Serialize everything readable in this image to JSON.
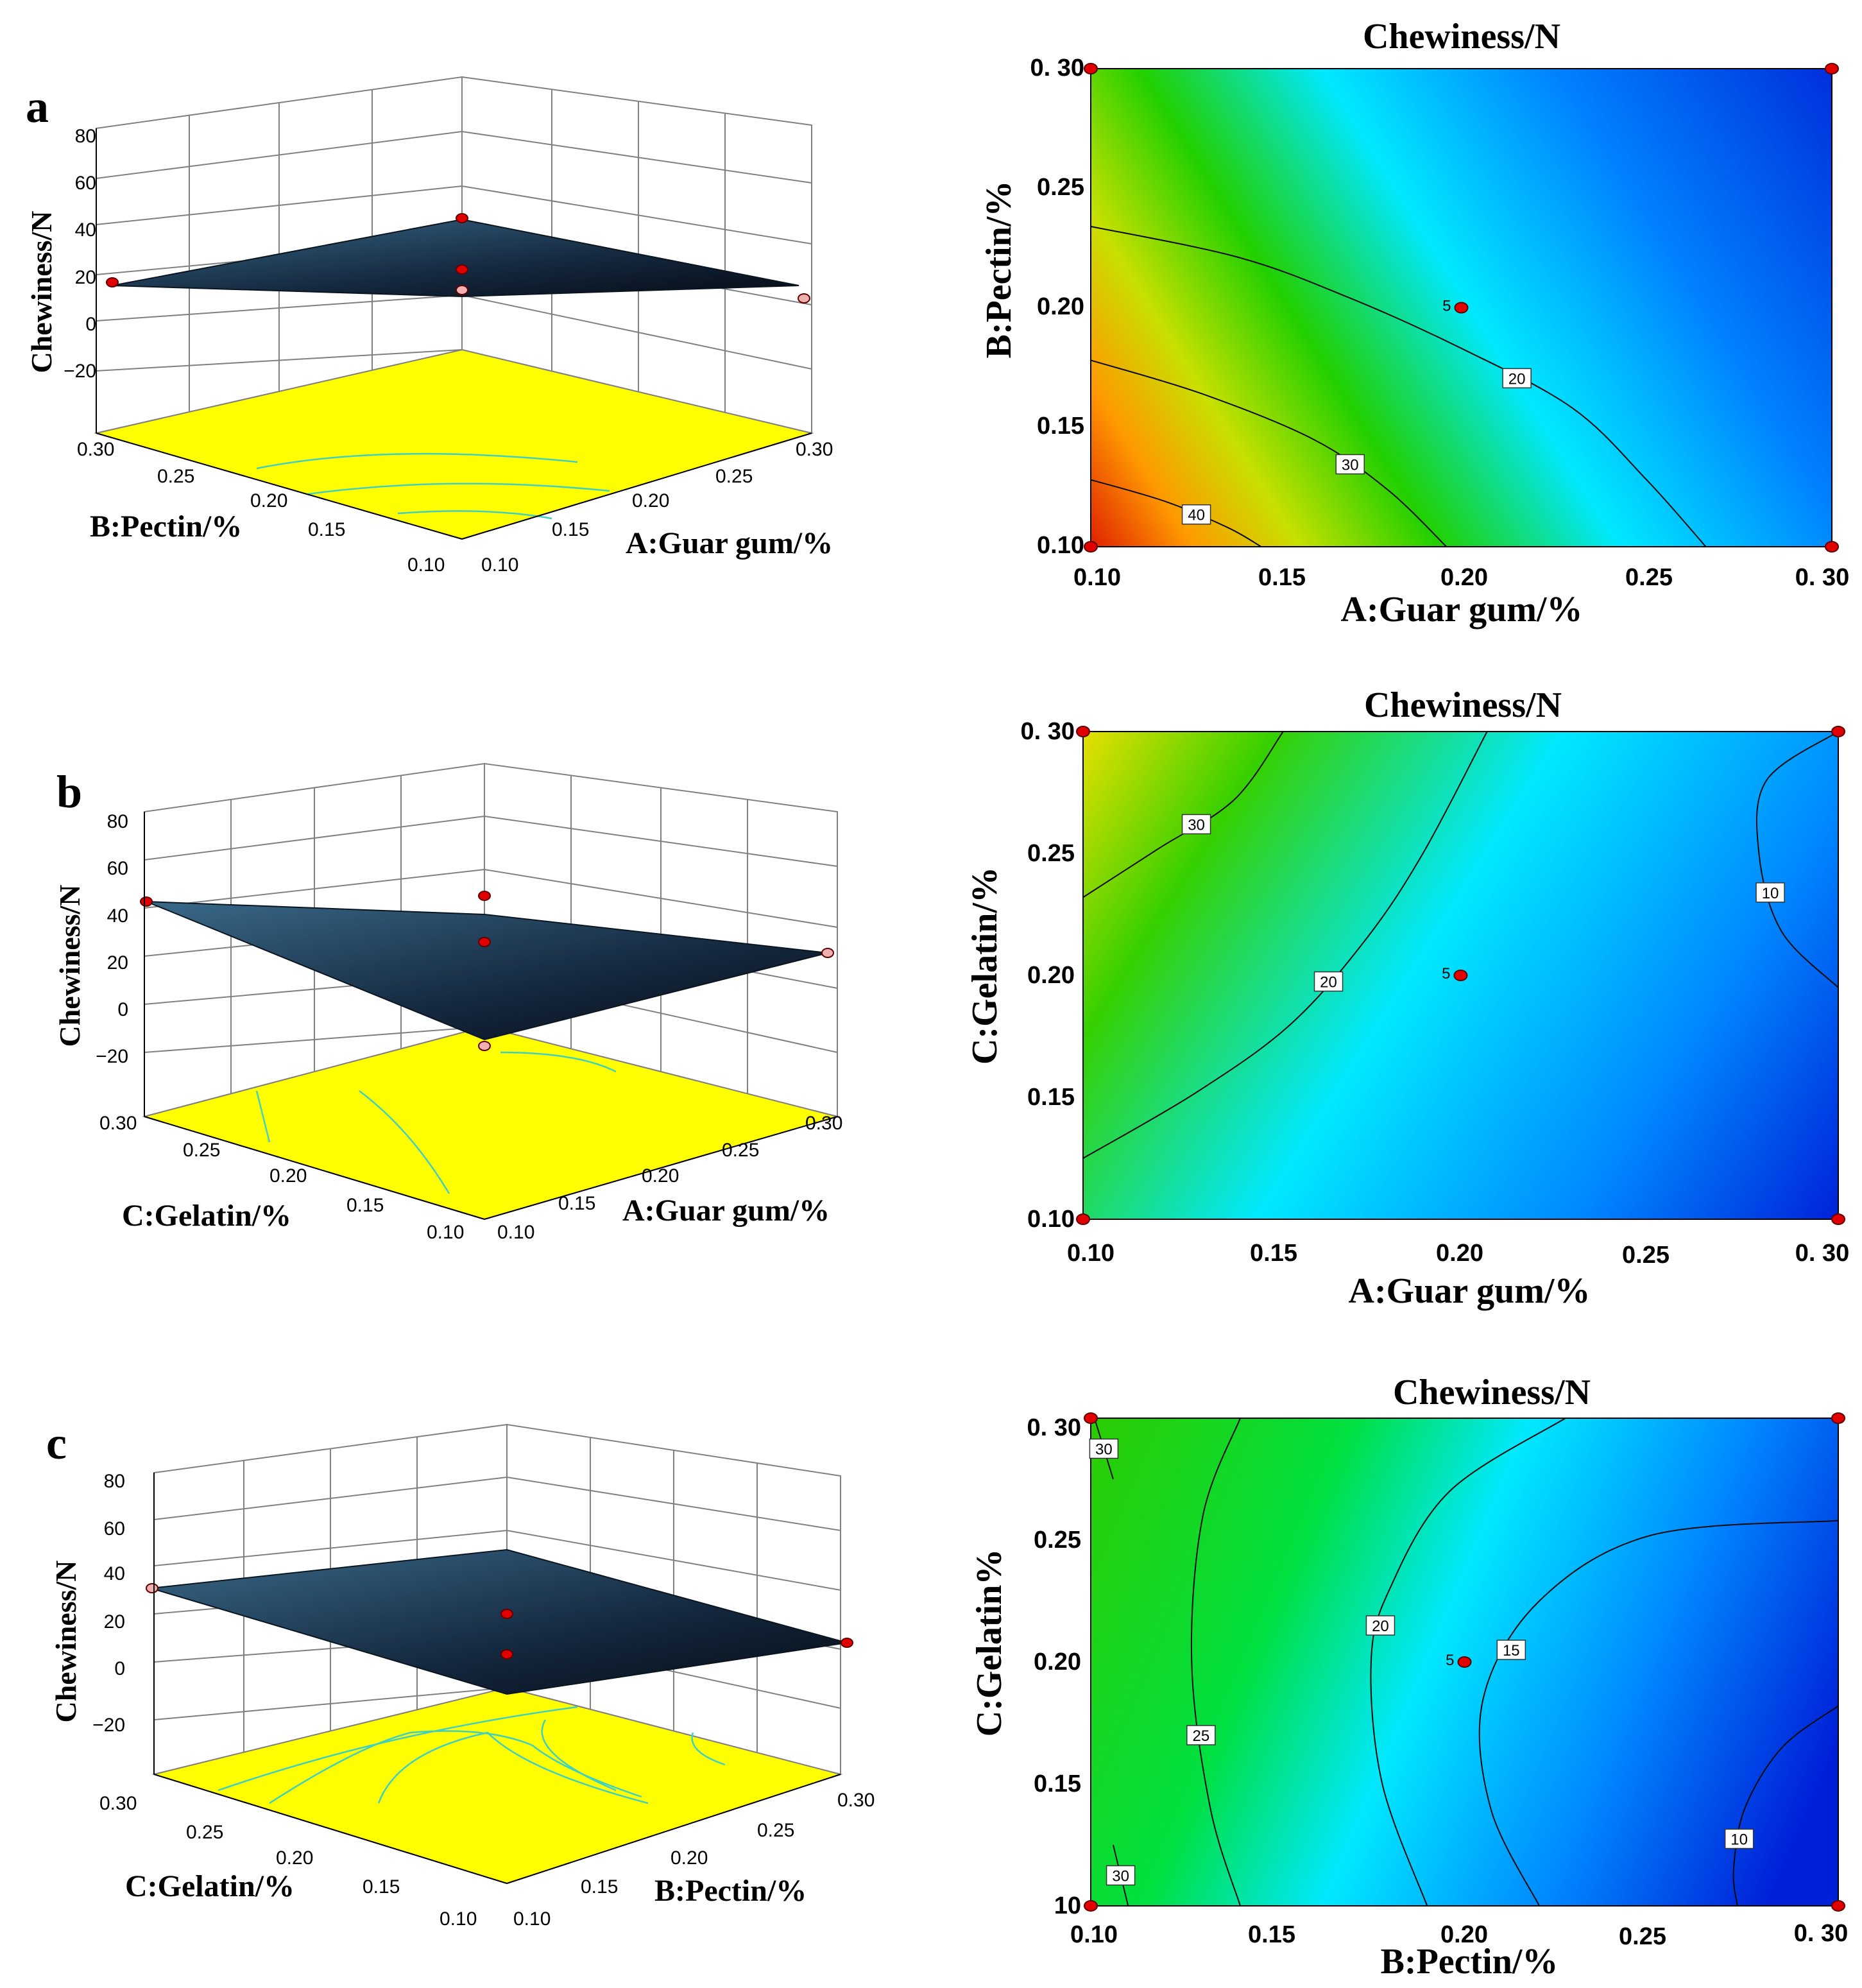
{
  "panels": [
    {
      "letter": "a",
      "response_label": "Chewiness/N",
      "z_ticks": [
        "80",
        "60",
        "40",
        "20",
        "0",
        "−20"
      ],
      "x_label": "A:Guar gum/%",
      "y_label": "B:Pectin/%",
      "x_ticks": [
        "0.10",
        "0.15",
        "0.20",
        "0.25",
        "0.30"
      ],
      "y_ticks": [
        "0.10",
        "0.15",
        "0.20",
        "0.25",
        "0.30"
      ]
    },
    {
      "letter": "b",
      "response_label": "Chewiness/N",
      "z_ticks": [
        "80",
        "60",
        "40",
        "20",
        "0",
        "−20"
      ],
      "x_label": "A:Guar gum/%",
      "y_label": "C:Gelatin/%",
      "x_ticks": [
        "0.10",
        "0.15",
        "0.20",
        "0.25",
        "0.30"
      ],
      "y_ticks": [
        "0.10",
        "0.15",
        "0.20",
        "0.25",
        "0.30"
      ]
    },
    {
      "letter": "c",
      "response_label": "Chewiness/N",
      "z_ticks": [
        "80",
        "60",
        "40",
        "20",
        "0",
        "−20"
      ],
      "x_label": "B:Pectin/%",
      "y_label": "C:Gelatin/%",
      "x_ticks": [
        "0.10",
        "0.15",
        "0.20",
        "0.25",
        "0.30"
      ],
      "y_ticks": [
        "0.10",
        "0.15",
        "0.20",
        "0.25",
        "0.30"
      ]
    }
  ],
  "contours": [
    {
      "title": "Chewiness/N",
      "x_label": "A:Guar gum/%",
      "y_label": "B:Pectin/%",
      "x_ticks": [
        "0.10",
        "0.15",
        "0.20",
        "0.25",
        "0. 30"
      ],
      "y_ticks": [
        "0.10",
        "0.15",
        "0.20",
        "0.25",
        "0. 30"
      ],
      "center_label": "5",
      "contour_labels": [
        "20",
        "30",
        "40"
      ]
    },
    {
      "title": "Chewiness/N",
      "x_label": "A:Guar gum/%",
      "y_label": "C:Gelatin/%",
      "x_ticks": [
        "0.10",
        "0.15",
        "0.20",
        "0.25",
        "0. 30"
      ],
      "y_ticks": [
        "0.10",
        "0.15",
        "0.20",
        "0.25",
        "0. 30"
      ],
      "center_label": "5",
      "contour_labels": [
        "30",
        "20",
        "10"
      ]
    },
    {
      "title": "Chewiness/N",
      "x_label": "B:Pectin/%",
      "y_label": "C:Gelatin%",
      "x_ticks": [
        "0.10",
        "0.15",
        "0.20",
        "0.25",
        "0. 30"
      ],
      "y_ticks": [
        "10",
        "0.15",
        "0.20",
        "0.25",
        "0. 30"
      ],
      "center_label": "5",
      "contour_labels": [
        "30",
        "25",
        "20",
        "15",
        "10",
        "30"
      ]
    }
  ],
  "chart_data": [
    {
      "type": "surface",
      "panel": "a",
      "x": {
        "label": "A:Guar gum/%",
        "range": [
          0.1,
          0.3
        ]
      },
      "y": {
        "label": "B:Pectin/%",
        "range": [
          0.1,
          0.3
        ]
      },
      "z": {
        "label": "Chewiness/N",
        "range": [
          -20,
          80
        ]
      },
      "corner_values": {
        "A0.10_B0.10": 46,
        "A0.30_B0.10": 4,
        "A0.10_B0.30": 19,
        "A0.30_B0.30": 3
      },
      "center": {
        "x": 0.2,
        "y": 0.2,
        "z": 6
      },
      "colors": {
        "surface": "#1c3b5c",
        "floor": "#ffff00"
      }
    },
    {
      "type": "surface",
      "panel": "b",
      "x": {
        "label": "A:Guar gum/%",
        "range": [
          0.1,
          0.3
        ]
      },
      "y": {
        "label": "C:Gelatin/%",
        "range": [
          0.1,
          0.3
        ]
      },
      "z": {
        "label": "Chewiness/N",
        "range": [
          -20,
          80
        ]
      },
      "corner_values": {
        "A0.10_C0.10": 15,
        "A0.30_C0.10": 12,
        "A0.10_C0.30": 33,
        "A0.30_C0.30": 6
      },
      "center": {
        "x": 0.2,
        "y": 0.2,
        "z": 5
      },
      "colors": {
        "surface": "#1c3b5c",
        "floor": "#ffff00"
      }
    },
    {
      "type": "surface",
      "panel": "c",
      "x": {
        "label": "B:Pectin/%",
        "range": [
          0.1,
          0.3
        ]
      },
      "y": {
        "label": "C:Gelatin/%",
        "range": [
          0.1,
          0.3
        ]
      },
      "z": {
        "label": "Chewiness/N",
        "range": [
          -20,
          80
        ]
      },
      "corner_values": {
        "B0.10_C0.10": 32,
        "B0.30_C0.10": 7,
        "B0.10_C0.30": 31,
        "B0.30_C0.30": 14
      },
      "center": {
        "x": 0.2,
        "y": 0.2,
        "z": 5
      },
      "colors": {
        "surface": "#1c3b5c",
        "floor": "#ffff00"
      }
    },
    {
      "type": "contour",
      "title": "Chewiness/N",
      "x": {
        "label": "A:Guar gum/%",
        "range": [
          0.1,
          0.3
        ]
      },
      "y": {
        "label": "B:Pectin/%",
        "range": [
          0.1,
          0.3
        ]
      },
      "levels": [
        {
          "value": 20,
          "points": [
            [
              0.1,
              0.234
            ],
            [
              0.14,
              0.221
            ],
            [
              0.17,
              0.204
            ],
            [
              0.2,
              0.183
            ],
            [
              0.23,
              0.158
            ],
            [
              0.25,
              0.128
            ],
            [
              0.266,
              0.1
            ]
          ]
        },
        {
          "value": 30,
          "points": [
            [
              0.1,
              0.178
            ],
            [
              0.13,
              0.164
            ],
            [
              0.16,
              0.145
            ],
            [
              0.18,
              0.124
            ],
            [
              0.196,
              0.1
            ]
          ]
        },
        {
          "value": 40,
          "points": [
            [
              0.1,
              0.128
            ],
            [
              0.12,
              0.119
            ],
            [
              0.137,
              0.108
            ],
            [
              0.146,
              0.1
            ]
          ]
        }
      ],
      "design_points": [
        [
          0.1,
          0.1
        ],
        [
          0.3,
          0.1
        ],
        [
          0.1,
          0.3
        ],
        [
          0.3,
          0.3
        ],
        [
          0.2,
          0.2
        ]
      ],
      "center_label": "5"
    },
    {
      "type": "contour",
      "title": "Chewiness/N",
      "x": {
        "label": "A:Guar gum/%",
        "range": [
          0.1,
          0.3
        ]
      },
      "y": {
        "label": "C:Gelatin/%",
        "range": [
          0.1,
          0.3
        ]
      },
      "levels": [
        {
          "value": 30,
          "points": [
            [
              0.1,
              0.232
            ],
            [
              0.12,
              0.252
            ],
            [
              0.14,
              0.272
            ],
            [
              0.153,
              0.3
            ]
          ]
        },
        {
          "value": 20,
          "points": [
            [
              0.1,
              0.125
            ],
            [
              0.13,
              0.152
            ],
            [
              0.155,
              0.18
            ],
            [
              0.175,
              0.215
            ],
            [
              0.19,
              0.25
            ],
            [
              0.207,
              0.3
            ]
          ]
        },
        {
          "value": 10,
          "points": [
            [
              0.3,
              0.3
            ],
            [
              0.281,
              0.28
            ],
            [
              0.279,
              0.25
            ],
            [
              0.285,
              0.218
            ],
            [
              0.3,
              0.195
            ]
          ]
        }
      ],
      "design_points": [
        [
          0.1,
          0.1
        ],
        [
          0.3,
          0.1
        ],
        [
          0.1,
          0.3
        ],
        [
          0.3,
          0.3
        ],
        [
          0.2,
          0.2
        ]
      ],
      "center_label": "5"
    },
    {
      "type": "contour",
      "title": "Chewiness/N",
      "x": {
        "label": "B:Pectin/%",
        "range": [
          0.1,
          0.3
        ]
      },
      "y": {
        "label": "C:Gelatin%",
        "range": [
          0.1,
          0.3
        ]
      },
      "levels": [
        {
          "value": 30,
          "points": [
            [
              0.101,
              0.3
            ],
            [
              0.106,
              0.275
            ]
          ]
        },
        {
          "value": 30,
          "points": [
            [
              0.106,
              0.125
            ],
            [
              0.11,
              0.1
            ]
          ]
        },
        {
          "value": 25,
          "points": [
            [
              0.14,
              0.3
            ],
            [
              0.13,
              0.26
            ],
            [
              0.127,
              0.2
            ],
            [
              0.132,
              0.14
            ],
            [
              0.14,
              0.1
            ]
          ]
        },
        {
          "value": 20,
          "points": [
            [
              0.227,
              0.3
            ],
            [
              0.196,
              0.27
            ],
            [
              0.18,
              0.23
            ],
            [
              0.175,
              0.2
            ],
            [
              0.178,
              0.15
            ],
            [
              0.19,
              0.1
            ]
          ]
        },
        {
          "value": 15,
          "points": [
            [
              0.3,
              0.258
            ],
            [
              0.25,
              0.252
            ],
            [
              0.22,
              0.225
            ],
            [
              0.205,
              0.185
            ],
            [
              0.207,
              0.14
            ],
            [
              0.22,
              0.1
            ]
          ]
        },
        {
          "value": 10,
          "points": [
            [
              0.3,
              0.182
            ],
            [
              0.285,
              0.165
            ],
            [
              0.275,
              0.14
            ],
            [
              0.272,
              0.115
            ],
            [
              0.273,
              0.1
            ]
          ]
        }
      ],
      "design_points": [
        [
          0.1,
          0.1
        ],
        [
          0.3,
          0.1
        ],
        [
          0.1,
          0.3
        ],
        [
          0.3,
          0.3
        ],
        [
          0.2,
          0.2
        ]
      ],
      "center_label": "5"
    }
  ]
}
